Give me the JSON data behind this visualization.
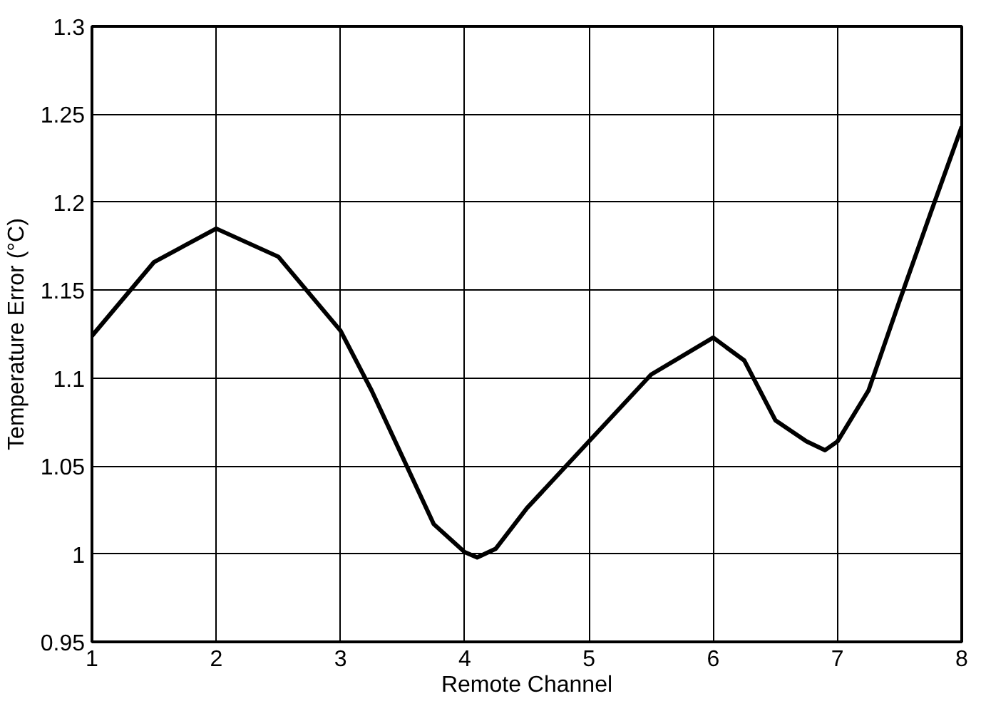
{
  "chart_data": {
    "type": "line",
    "xlabel": "Remote Channel",
    "ylabel": "Temperature Error (°C)",
    "x": [
      1,
      1.5,
      2,
      2.5,
      3,
      3.25,
      3.5,
      3.75,
      4,
      4.1,
      4.25,
      4.5,
      5,
      5.5,
      6,
      6.25,
      6.5,
      6.75,
      6.9,
      7,
      7.25,
      7.5,
      7.75,
      8
    ],
    "series": [
      {
        "color": "#000000",
        "values": [
          1.124,
          1.166,
          1.185,
          1.169,
          1.127,
          1.093,
          1.055,
          1.017,
          1.001,
          0.998,
          1.003,
          1.026,
          1.064,
          1.102,
          1.123,
          1.11,
          1.076,
          1.064,
          1.059,
          1.064,
          1.093,
          1.144,
          1.194,
          1.243
        ]
      }
    ],
    "xlim": [
      1,
      8
    ],
    "ylim": [
      0.95,
      1.3
    ],
    "xticks": [
      1,
      2,
      3,
      4,
      5,
      6,
      7,
      8
    ],
    "yticks": [
      0.95,
      1,
      1.05,
      1.1,
      1.15,
      1.2,
      1.25,
      1.3
    ],
    "grid": true,
    "marker": "none",
    "line_style": "solid"
  }
}
